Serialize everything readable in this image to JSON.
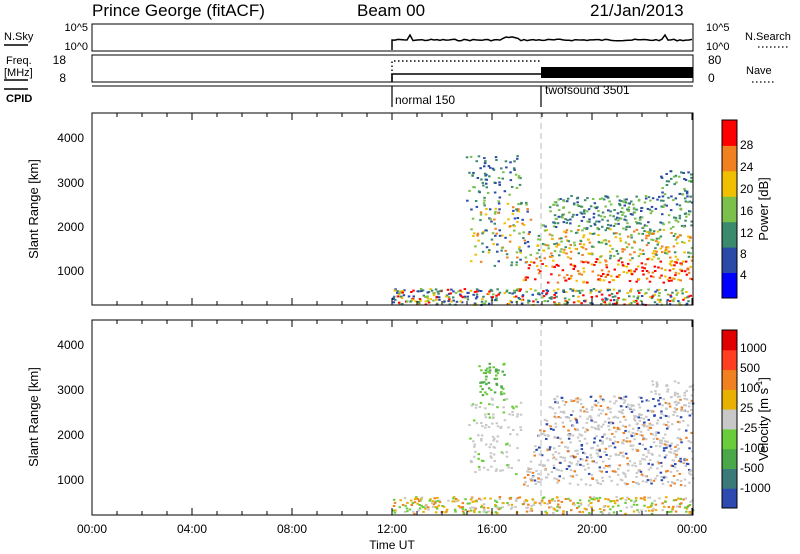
{
  "header": {
    "title": "Prince George (fitACF)",
    "beam": "Beam 00",
    "date": "21/Jan/2013"
  },
  "sky_panel": {
    "left_label": "N.Sky",
    "left_ticks": [
      "10^5",
      "10^0"
    ],
    "right_ticks": [
      "10^5",
      "10^0"
    ],
    "right_label": "N.Search"
  },
  "freq_panel": {
    "left_label_line1": "Freq.",
    "left_label_line2": "[MHz]",
    "left_ticks": [
      "18",
      "8"
    ],
    "right_ticks": [
      "80",
      "0"
    ],
    "right_label": "Nave"
  },
  "cpid": {
    "label": "CPID",
    "modes": [
      "normal 150",
      "twofsound 3501"
    ]
  },
  "power_panel": {
    "ylabel": "Slant Range [km]",
    "yticks": [
      "1000",
      "2000",
      "3000",
      "4000"
    ],
    "cbar_label": "Power [dB]",
    "cbar_ticks": [
      "4",
      "8",
      "12",
      "16",
      "20",
      "24",
      "28"
    ]
  },
  "velocity_panel": {
    "ylabel": "Slant Range [km]",
    "yticks": [
      "1000",
      "2000",
      "3000",
      "4000"
    ],
    "cbar_label": "Velocity [m s",
    "cbar_label_sup": "-1",
    "cbar_label_end": "]",
    "cbar_ticks": [
      "1000",
      "500",
      "100",
      "25",
      "-25",
      "-100",
      "-500",
      "-1000"
    ]
  },
  "x_axis": {
    "xticks": [
      "00:00",
      "04:00",
      "08:00",
      "12:00",
      "16:00",
      "20:00",
      "00:00"
    ],
    "xlabel": "Time UT"
  },
  "colors": {
    "power": [
      "#0000ff",
      "#2a4aa8",
      "#3c8a6e",
      "#7ac04a",
      "#f0c000",
      "#f08020",
      "#ff0000"
    ],
    "velocity": [
      "#2c4ab0",
      "#3c7a7a",
      "#4aa84a",
      "#6acc3a",
      "#c8c8c8",
      "#e8b000",
      "#f08020",
      "#ff4020",
      "#e00000"
    ]
  },
  "chart_data": [
    {
      "type": "line",
      "name": "N.Sky",
      "x_range_ut_hours": [
        0,
        24
      ],
      "data_start_ut": 12.0,
      "scale": "log"
    },
    {
      "type": "line",
      "name": "Freq. / Nave",
      "x_range_ut_hours": [
        0,
        24
      ],
      "freq_ylim_mhz": [
        8,
        18
      ],
      "nave_ylim": [
        0,
        80
      ],
      "segments": [
        {
          "start_ut": 12.0,
          "end_ut": 17.8,
          "cpid": "normal 150"
        },
        {
          "start_ut": 17.8,
          "end_ut": 24.0,
          "cpid": "twofsound 3501"
        }
      ]
    },
    {
      "type": "heatmap",
      "quantity": "Power",
      "units": "dB",
      "x_range_ut_hours": [
        0,
        24
      ],
      "ylim_km": [
        180,
        4500
      ],
      "color_ticks": [
        4,
        8,
        12,
        16,
        20,
        24,
        28
      ]
    },
    {
      "type": "heatmap",
      "quantity": "Velocity",
      "units": "m s^-1",
      "x_range_ut_hours": [
        0,
        24
      ],
      "ylim_km": [
        180,
        4500
      ],
      "color_ticks": [
        1000,
        500,
        100,
        25,
        -25,
        -100,
        -500,
        -1000
      ]
    }
  ]
}
